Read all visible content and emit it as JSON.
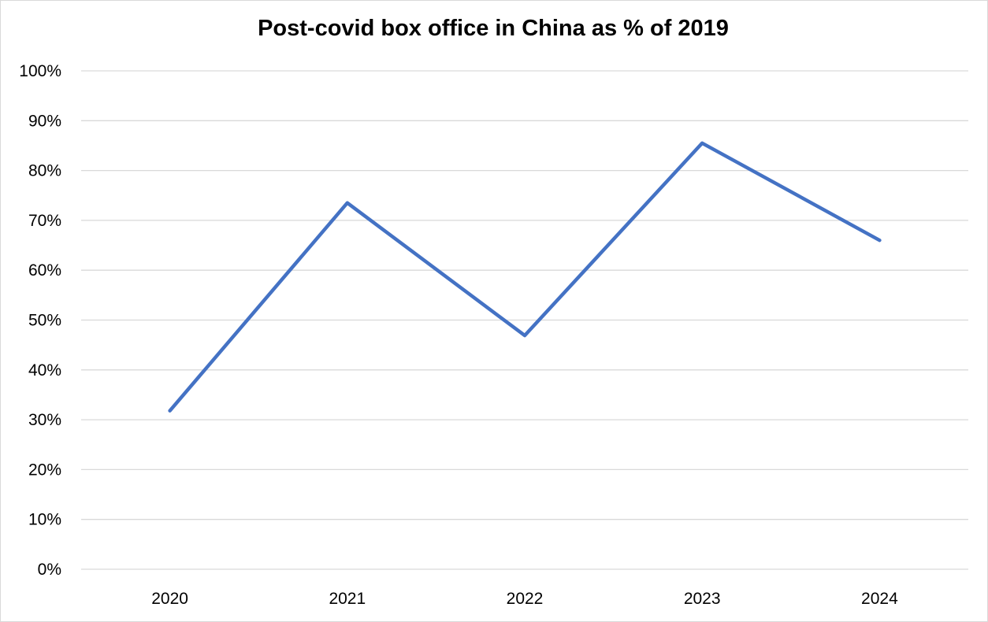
{
  "chart_data": {
    "type": "line",
    "title": "Post-covid box office in China as % of 2019",
    "xlabel": "",
    "ylabel": "",
    "categories": [
      "2020",
      "2021",
      "2022",
      "2023",
      "2024"
    ],
    "series": [
      {
        "values": [
          31.8,
          73.5,
          46.9,
          85.5,
          66.0
        ],
        "color": "#4472C4"
      }
    ],
    "ylim": [
      0,
      100
    ],
    "y_ticks": [
      0,
      10,
      20,
      30,
      40,
      50,
      60,
      70,
      80,
      90,
      100
    ],
    "y_tick_labels": [
      "0%",
      "10%",
      "20%",
      "30%",
      "40%",
      "50%",
      "60%",
      "70%",
      "80%",
      "90%",
      "100%"
    ],
    "grid": true,
    "grid_color": "#d9d9d9",
    "legend": "none"
  }
}
